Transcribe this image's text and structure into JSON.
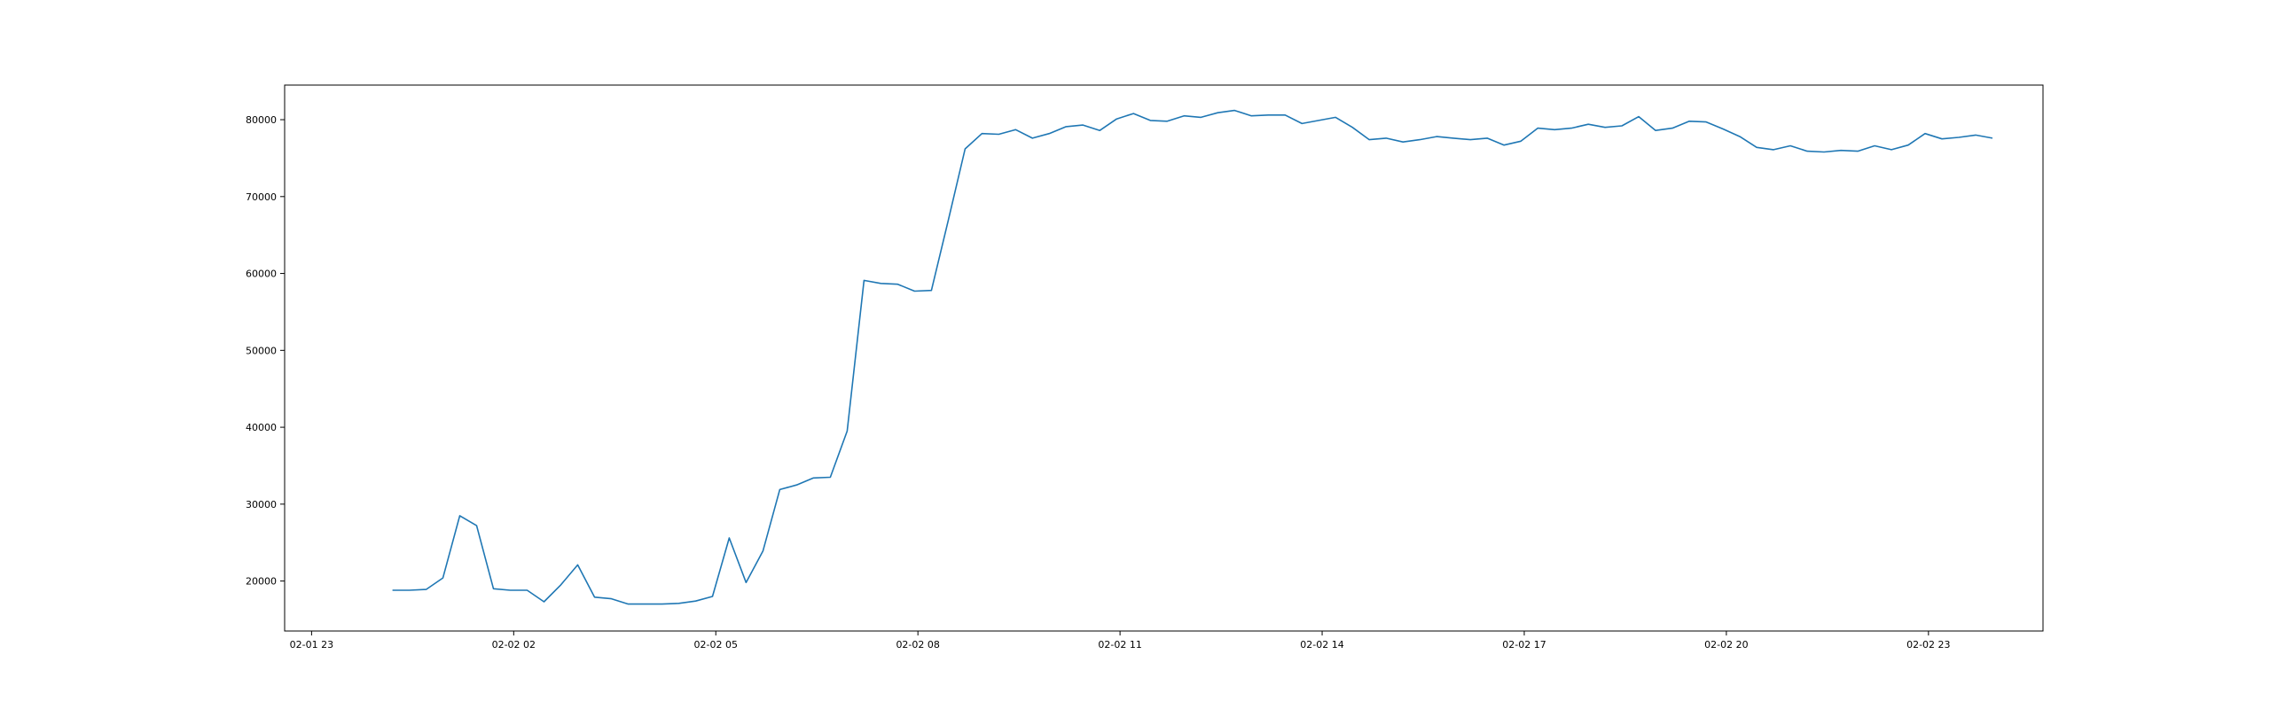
{
  "chart_data": {
    "type": "line",
    "title": "",
    "xlabel": "",
    "ylabel": "",
    "grid": false,
    "line_color": "#1f77b4",
    "xlim": [
      -0.4,
      25.7
    ],
    "ylim": [
      13500,
      84500
    ],
    "x_ticks": [
      {
        "value": 0,
        "label": "02-01 23"
      },
      {
        "value": 3,
        "label": "02-02 02"
      },
      {
        "value": 6,
        "label": "02-02 05"
      },
      {
        "value": 9,
        "label": "02-02 08"
      },
      {
        "value": 12,
        "label": "02-02 11"
      },
      {
        "value": 15,
        "label": "02-02 14"
      },
      {
        "value": 18,
        "label": "02-02 17"
      },
      {
        "value": 21,
        "label": "02-02 20"
      },
      {
        "value": 24,
        "label": "02-02 23"
      }
    ],
    "y_ticks": [
      {
        "value": 20000,
        "label": "20000"
      },
      {
        "value": 30000,
        "label": "30000"
      },
      {
        "value": 40000,
        "label": "40000"
      },
      {
        "value": 50000,
        "label": "50000"
      },
      {
        "value": 60000,
        "label": "60000"
      },
      {
        "value": 70000,
        "label": "70000"
      },
      {
        "value": 80000,
        "label": "80000"
      }
    ],
    "series": [
      {
        "x": [
          1.2,
          1.45,
          1.7,
          1.95,
          2.2,
          2.45,
          2.7,
          2.95,
          3.2,
          3.45,
          3.7,
          3.95,
          4.2,
          4.45,
          4.7,
          4.95,
          5.2,
          5.45,
          5.7,
          5.95,
          6.2,
          6.45,
          6.7,
          6.95,
          7.2,
          7.45,
          7.7,
          7.95,
          8.2,
          8.45,
          8.7,
          8.95,
          9.2,
          9.45,
          9.7,
          9.95,
          10.2,
          10.45,
          10.7,
          10.95,
          11.2,
          11.45,
          11.7,
          11.95,
          12.2,
          12.45,
          12.7,
          12.95,
          13.2,
          13.45,
          13.7,
          13.95,
          14.2,
          14.45,
          14.7,
          14.95,
          15.2,
          15.45,
          15.7,
          15.95,
          16.2,
          16.45,
          16.7,
          16.95,
          17.2,
          17.45,
          17.7,
          17.95,
          18.2,
          18.45,
          18.7,
          18.95,
          19.2,
          19.45,
          19.7,
          19.95,
          20.2,
          20.45,
          20.7,
          20.95,
          21.2,
          21.45,
          21.7,
          21.95,
          22.2,
          22.45,
          22.7,
          22.95,
          23.2,
          23.45,
          23.7,
          23.95,
          24.2,
          24.45,
          24.7,
          24.95
        ],
        "values": [
          18800,
          18800,
          18900,
          20400,
          28500,
          27200,
          19000,
          18800,
          18800,
          17300,
          19500,
          22100,
          17900,
          17700,
          17000,
          17000,
          17000,
          17100,
          17400,
          18000,
          25600,
          19800,
          23900,
          31900,
          32500,
          33400,
          33500,
          39500,
          59100,
          58700,
          58600,
          57700,
          57800,
          66900,
          76200,
          78200,
          78100,
          78700,
          77600,
          78200,
          79100,
          79300,
          78600,
          80100,
          80800,
          79900,
          79800,
          80500,
          80300,
          80900,
          81200,
          80500,
          80600,
          80600,
          79500,
          79900,
          80300,
          79000,
          77400,
          77600,
          77100,
          77400,
          77800,
          77600,
          77400,
          77600,
          76700,
          77200,
          78900,
          78700,
          78900,
          79400,
          79000,
          79200,
          80400,
          78600,
          78900,
          79800,
          79700,
          78800,
          77800,
          76400,
          76100,
          76600,
          75900,
          75800,
          76000,
          75900,
          76600,
          76100,
          76700,
          78200,
          77500,
          77700,
          78000,
          77600
        ]
      }
    ]
  }
}
